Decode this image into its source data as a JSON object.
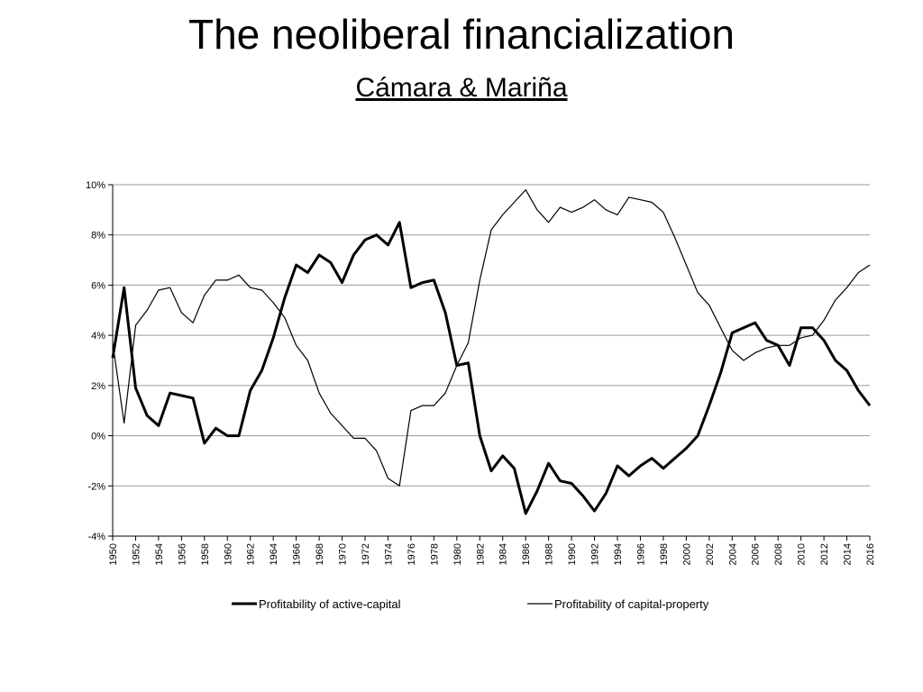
{
  "slide": {
    "title": "The neoliberal financialization",
    "subtitle": "Cámara & Mariña"
  },
  "chart_data": {
    "type": "line",
    "title": "",
    "xlabel": "",
    "ylabel": "",
    "xlim": [
      1950,
      2016
    ],
    "ylim": [
      -4,
      10
    ],
    "y_ticks": [
      10,
      8,
      6,
      4,
      2,
      0,
      -2,
      -4
    ],
    "y_tick_labels": [
      "10%",
      "8%",
      "6%",
      "4%",
      "2%",
      "0%",
      "-2%",
      "-4%"
    ],
    "x_ticks": [
      1950,
      1952,
      1954,
      1956,
      1958,
      1960,
      1962,
      1964,
      1966,
      1968,
      1970,
      1972,
      1974,
      1976,
      1978,
      1980,
      1982,
      1984,
      1986,
      1988,
      1990,
      1992,
      1994,
      1996,
      1998,
      2000,
      2002,
      2004,
      2006,
      2008,
      2010,
      2012,
      2014,
      2016
    ],
    "grid": true,
    "legend_position": "bottom",
    "colors": {
      "line": "#000000",
      "grid": "#9a9a9a",
      "axis": "#000000"
    },
    "x": [
      1950,
      1951,
      1952,
      1953,
      1954,
      1955,
      1956,
      1957,
      1958,
      1959,
      1960,
      1961,
      1962,
      1963,
      1964,
      1965,
      1966,
      1967,
      1968,
      1969,
      1970,
      1971,
      1972,
      1973,
      1974,
      1975,
      1976,
      1977,
      1978,
      1979,
      1980,
      1981,
      1982,
      1983,
      1984,
      1985,
      1986,
      1987,
      1988,
      1989,
      1990,
      1991,
      1992,
      1993,
      1994,
      1995,
      1996,
      1997,
      1998,
      1999,
      2000,
      2001,
      2002,
      2003,
      2004,
      2005,
      2006,
      2007,
      2008,
      2009,
      2010,
      2011,
      2012,
      2013,
      2014,
      2015,
      2016
    ],
    "series": [
      {
        "name": "Profitability of active-capital",
        "style": "thick",
        "values": [
          3.1,
          5.9,
          1.9,
          0.8,
          0.4,
          1.7,
          1.6,
          1.5,
          -0.3,
          0.3,
          0.0,
          0.0,
          1.8,
          2.6,
          3.9,
          5.5,
          6.8,
          6.5,
          7.2,
          6.9,
          6.1,
          7.2,
          7.8,
          8.0,
          7.6,
          8.5,
          5.9,
          6.1,
          6.2,
          4.9,
          2.8,
          2.9,
          0.0,
          -1.4,
          -0.8,
          -1.3,
          -3.1,
          -2.2,
          -1.1,
          -1.8,
          -1.9,
          -2.4,
          -3.0,
          -2.3,
          -1.2,
          -1.6,
          -1.2,
          -0.9,
          -1.3,
          -0.9,
          -0.5,
          0.0,
          1.2,
          2.5,
          4.1,
          4.3,
          4.5,
          3.8,
          3.6,
          2.8,
          4.3,
          4.3,
          3.8,
          3.0,
          2.6,
          1.8,
          1.2
        ]
      },
      {
        "name": "Profitability of capital-property",
        "style": "thin",
        "values": [
          3.7,
          0.5,
          4.4,
          5.0,
          5.8,
          5.9,
          4.9,
          4.5,
          5.6,
          6.2,
          6.2,
          6.4,
          5.9,
          5.8,
          5.3,
          4.7,
          3.6,
          3.0,
          1.7,
          0.9,
          0.4,
          -0.1,
          -0.1,
          -0.6,
          -1.7,
          -2.0,
          1.0,
          1.2,
          1.2,
          1.7,
          2.8,
          3.7,
          6.2,
          8.2,
          8.8,
          9.3,
          9.8,
          9.0,
          8.5,
          9.1,
          8.9,
          9.1,
          9.4,
          9.0,
          8.8,
          9.5,
          9.4,
          9.3,
          8.9,
          7.9,
          6.8,
          5.7,
          5.2,
          4.3,
          3.4,
          3.0,
          3.3,
          3.5,
          3.6,
          3.6,
          3.9,
          4.0,
          4.6,
          5.4,
          5.9,
          6.5,
          6.8
        ]
      }
    ]
  }
}
